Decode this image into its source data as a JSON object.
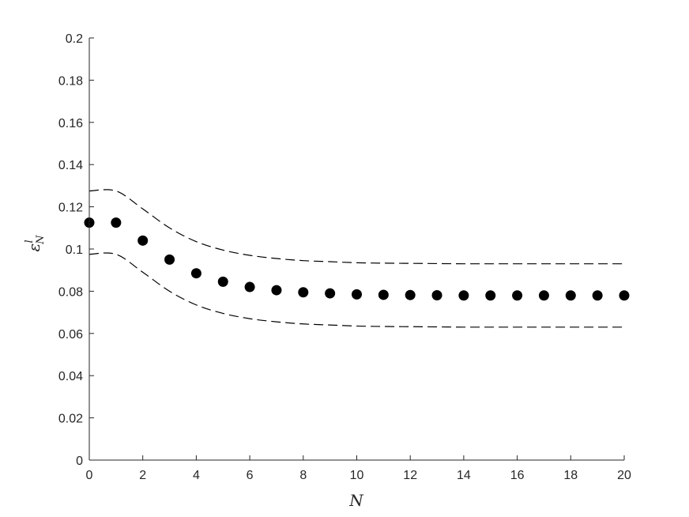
{
  "chart_data": {
    "type": "scatter",
    "title": "",
    "xlabel": "N",
    "ylabel": {
      "base": "ε",
      "superscript": "l",
      "subscript": "N"
    },
    "xlim": [
      0,
      20
    ],
    "ylim": [
      0,
      0.2
    ],
    "xticks": [
      0,
      2,
      4,
      6,
      8,
      10,
      12,
      14,
      16,
      18,
      20
    ],
    "xtick_labels": [
      "0",
      "2",
      "4",
      "6",
      "8",
      "10",
      "12",
      "14",
      "16",
      "18",
      "20"
    ],
    "yticks": [
      0,
      0.02,
      0.04,
      0.06,
      0.08,
      0.1,
      0.12,
      0.14,
      0.16,
      0.18,
      0.2
    ],
    "ytick_labels": [
      "0",
      "0.02",
      "0.04",
      "0.06",
      "0.08",
      "0.1",
      "0.12",
      "0.14",
      "0.16",
      "0.18",
      "0.2"
    ],
    "grid": false,
    "box": false,
    "series": [
      {
        "style": "markers",
        "color": "#000000",
        "x": [
          0,
          1,
          2,
          3,
          4,
          5,
          6,
          7,
          8,
          9,
          10,
          11,
          12,
          13,
          14,
          15,
          16,
          17,
          18,
          19,
          20
        ],
        "y": [
          0.1125,
          0.1125,
          0.104,
          0.095,
          0.0885,
          0.0845,
          0.082,
          0.0805,
          0.0795,
          0.079,
          0.0785,
          0.0783,
          0.0782,
          0.0781,
          0.078,
          0.078,
          0.078,
          0.078,
          0.078,
          0.078,
          0.078
        ]
      },
      {
        "style": "dashed",
        "color": "#000000",
        "x": [
          0,
          1,
          2,
          3,
          4,
          5,
          6,
          7,
          8,
          9,
          10,
          11,
          12,
          13,
          14,
          15,
          16,
          17,
          18,
          19,
          20
        ],
        "y": [
          0.1275,
          0.1275,
          0.119,
          0.11,
          0.1035,
          0.0995,
          0.097,
          0.0955,
          0.0945,
          0.094,
          0.0935,
          0.0933,
          0.0932,
          0.0931,
          0.093,
          0.093,
          0.093,
          0.093,
          0.093,
          0.093,
          0.093
        ]
      },
      {
        "style": "dashed",
        "color": "#000000",
        "x": [
          0,
          1,
          2,
          3,
          4,
          5,
          6,
          7,
          8,
          9,
          10,
          11,
          12,
          13,
          14,
          15,
          16,
          17,
          18,
          19,
          20
        ],
        "y": [
          0.0975,
          0.0975,
          0.089,
          0.08,
          0.0735,
          0.0695,
          0.067,
          0.0655,
          0.0645,
          0.064,
          0.0635,
          0.0633,
          0.0632,
          0.0631,
          0.063,
          0.063,
          0.063,
          0.063,
          0.063,
          0.063,
          0.063
        ]
      }
    ]
  }
}
